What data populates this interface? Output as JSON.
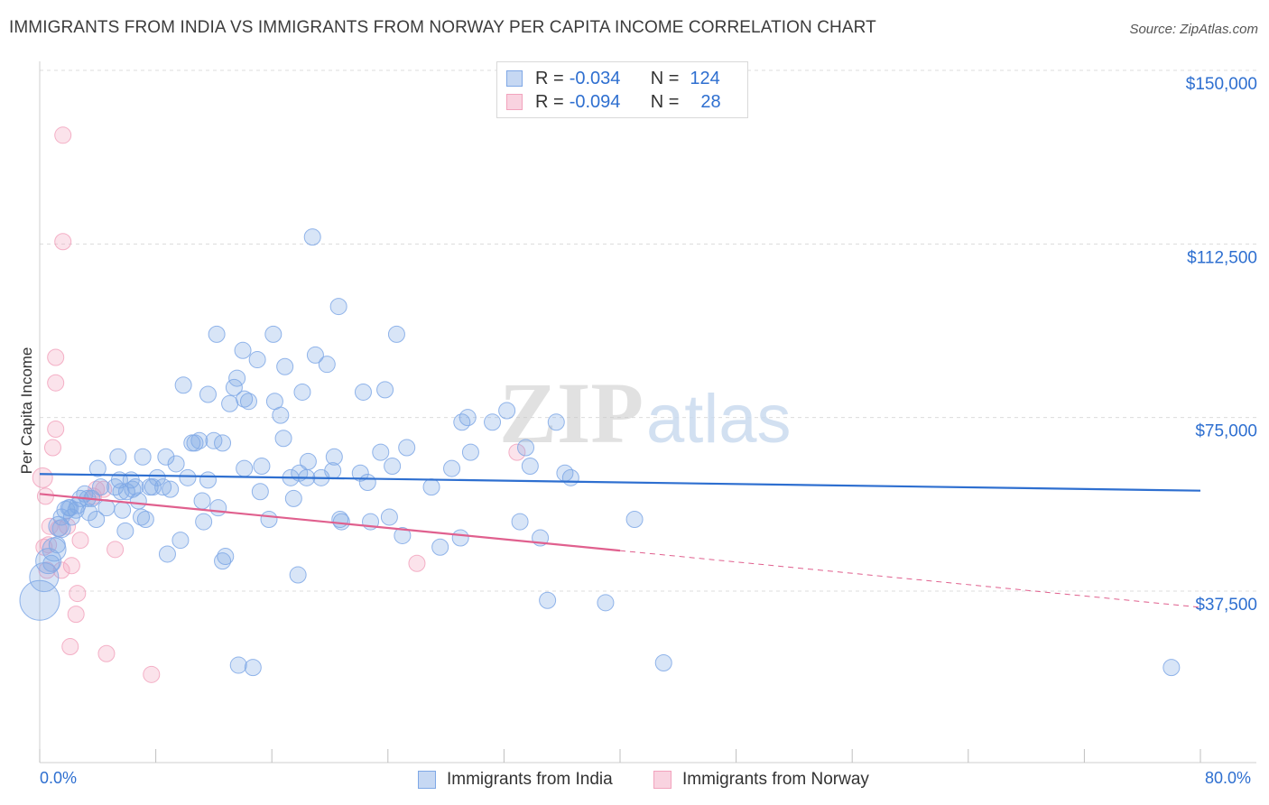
{
  "title": "IMMIGRANTS FROM INDIA VS IMMIGRANTS FROM NORWAY PER CAPITA INCOME CORRELATION CHART",
  "source": "Source: ZipAtlas.com",
  "colors": {
    "india": "#7fa8e6",
    "india_line": "#2e6fd0",
    "norway": "#f2a3bd",
    "norway_line": "#e0608e",
    "axis_text": "#2e6fd0"
  },
  "legend": {
    "india": {
      "r_label": "R =",
      "r_value": "-0.034",
      "n_label": "N =",
      "n_value": "124"
    },
    "norway": {
      "r_label": "R =",
      "r_value": "-0.094",
      "n_label": "N =",
      "n_value": "28"
    }
  },
  "watermark": {
    "zip": "ZIP",
    "atlas": "atlas"
  },
  "chart_data": {
    "type": "scatter",
    "title": "IMMIGRANTS FROM INDIA VS IMMIGRANTS FROM NORWAY PER CAPITA INCOME CORRELATION CHART",
    "xlabel": "",
    "ylabel": "Per Capita Income",
    "xlim": [
      0,
      80
    ],
    "ylim": [
      0,
      155000
    ],
    "x_tick_labels": [
      "0.0%",
      "80.0%"
    ],
    "y_ticks": [
      37500,
      75000,
      112500,
      150000
    ],
    "y_tick_labels": [
      "$37,500",
      "$75,000",
      "$112,500",
      "$150,000"
    ],
    "series": [
      {
        "name": "Immigrants from India",
        "r": -0.034,
        "n": 124,
        "trend": {
          "x": [
            0,
            80
          ],
          "y": [
            62800,
            59200
          ],
          "dashed_from": null
        },
        "points": [
          [
            0.0,
            35500,
            22
          ],
          [
            0.3,
            40500,
            16
          ],
          [
            0.6,
            44000,
            14
          ],
          [
            1.0,
            46500,
            13
          ],
          [
            1.3,
            51500,
            11
          ],
          [
            1.5,
            51000,
            10
          ],
          [
            1.8,
            55000,
            10
          ],
          [
            2.0,
            55500,
            9
          ],
          [
            2.2,
            53500,
            9
          ],
          [
            2.5,
            55000,
            9
          ],
          [
            2.8,
            57500,
            9
          ],
          [
            3.1,
            58500,
            9
          ],
          [
            3.4,
            54500,
            9
          ],
          [
            3.6,
            57500,
            9
          ],
          [
            3.9,
            53000,
            9
          ],
          [
            4.2,
            60000,
            9
          ],
          [
            4.6,
            55500,
            9
          ],
          [
            4.0,
            64000,
            9
          ],
          [
            5.2,
            60000,
            9
          ],
          [
            5.5,
            61500,
            9
          ],
          [
            6.0,
            59000,
            9
          ],
          [
            6.4,
            59500,
            9
          ],
          [
            6.8,
            57000,
            9
          ],
          [
            5.7,
            55000,
            9
          ],
          [
            5.9,
            50500,
            9
          ],
          [
            7.0,
            53500,
            9
          ],
          [
            7.6,
            60000,
            9
          ],
          [
            8.1,
            62000,
            9
          ],
          [
            8.5,
            60000,
            9
          ],
          [
            9.0,
            59500,
            9
          ],
          [
            8.8,
            45500,
            9
          ],
          [
            9.7,
            48500,
            9
          ],
          [
            10.2,
            62000,
            9
          ],
          [
            9.4,
            65000,
            9
          ],
          [
            11.0,
            70000,
            9
          ],
          [
            10.7,
            69500,
            9
          ],
          [
            11.3,
            52500,
            9
          ],
          [
            11.2,
            57000,
            9
          ],
          [
            12.3,
            55500,
            9
          ],
          [
            12.6,
            44000,
            9
          ],
          [
            12.8,
            45000,
            9
          ],
          [
            13.1,
            78000,
            9
          ],
          [
            13.4,
            81500,
            9
          ],
          [
            13.6,
            83500,
            9
          ],
          [
            14.0,
            89500,
            9
          ],
          [
            14.4,
            78500,
            9
          ],
          [
            15.0,
            87500,
            9
          ],
          [
            15.3,
            64500,
            9
          ],
          [
            15.2,
            59000,
            9
          ],
          [
            15.8,
            53000,
            9
          ],
          [
            16.2,
            78500,
            9
          ],
          [
            16.6,
            75500,
            9
          ],
          [
            16.8,
            70500,
            9
          ],
          [
            16.9,
            86000,
            9
          ],
          [
            17.3,
            62000,
            9
          ],
          [
            17.5,
            57500,
            9
          ],
          [
            17.9,
            63000,
            9
          ],
          [
            18.1,
            80500,
            9
          ],
          [
            18.4,
            62000,
            9
          ],
          [
            18.5,
            65500,
            9
          ],
          [
            19.0,
            88500,
            9
          ],
          [
            19.4,
            62000,
            9
          ],
          [
            19.8,
            86500,
            9
          ],
          [
            20.3,
            66500,
            9
          ],
          [
            20.2,
            63500,
            9
          ],
          [
            20.8,
            52500,
            9
          ],
          [
            18.8,
            114000,
            9
          ],
          [
            20.6,
            99000,
            9
          ],
          [
            22.1,
            63000,
            9
          ],
          [
            22.3,
            80500,
            9
          ],
          [
            22.8,
            52500,
            9
          ],
          [
            23.5,
            67500,
            9
          ],
          [
            23.8,
            81000,
            9
          ],
          [
            24.1,
            53500,
            9
          ],
          [
            24.3,
            64500,
            9
          ],
          [
            24.6,
            93000,
            9
          ],
          [
            25.0,
            49500,
            9
          ],
          [
            25.3,
            68500,
            9
          ],
          [
            27.0,
            60000,
            9
          ],
          [
            27.6,
            47000,
            9
          ],
          [
            28.4,
            64000,
            9
          ],
          [
            29.1,
            74000,
            9
          ],
          [
            29.5,
            75000,
            9
          ],
          [
            29.0,
            49000,
            9
          ],
          [
            29.7,
            67500,
            9
          ],
          [
            31.2,
            74000,
            9
          ],
          [
            32.2,
            76500,
            9
          ],
          [
            33.1,
            52500,
            9
          ],
          [
            33.5,
            68500,
            9
          ],
          [
            33.8,
            64500,
            9
          ],
          [
            34.5,
            49000,
            9
          ],
          [
            35.6,
            74000,
            9
          ],
          [
            36.2,
            63000,
            9
          ],
          [
            36.6,
            62000,
            9
          ],
          [
            35.0,
            35500,
            9
          ],
          [
            39.0,
            35000,
            9
          ],
          [
            41.0,
            53000,
            9
          ],
          [
            43.0,
            22000,
            9
          ],
          [
            78.0,
            21000,
            9
          ],
          [
            14.7,
            21000,
            9
          ],
          [
            16.1,
            93000,
            9
          ],
          [
            14.1,
            64000,
            9
          ],
          [
            12.6,
            69500,
            9
          ],
          [
            11.6,
            61500,
            9
          ],
          [
            10.5,
            69500,
            9
          ],
          [
            8.7,
            66500,
            9
          ],
          [
            7.1,
            66500,
            9
          ],
          [
            6.3,
            61500,
            9
          ],
          [
            5.6,
            59000,
            9
          ],
          [
            5.4,
            66500,
            9
          ],
          [
            9.9,
            82000,
            9
          ],
          [
            11.6,
            80000,
            9
          ],
          [
            12.0,
            70000,
            9
          ],
          [
            12.2,
            93000,
            9
          ],
          [
            14.1,
            79000,
            9
          ],
          [
            3.3,
            57500,
            9
          ],
          [
            2.6,
            56000,
            9
          ],
          [
            2.1,
            55500,
            9
          ],
          [
            1.5,
            53500,
            9
          ],
          [
            1.2,
            47500,
            9
          ],
          [
            0.8,
            43500,
            9
          ],
          [
            7.8,
            60000,
            9
          ],
          [
            7.3,
            53000,
            9
          ],
          [
            6.6,
            60000,
            9
          ],
          [
            17.8,
            41000,
            9
          ],
          [
            13.7,
            21500,
            9
          ],
          [
            20.7,
            53000,
            9
          ],
          [
            22.6,
            61000,
            9
          ]
        ]
      },
      {
        "name": "Immigrants from Norway",
        "r": -0.094,
        "n": 28,
        "trend": {
          "x": [
            0,
            80
          ],
          "y": [
            58500,
            34000
          ],
          "dashed_from": 40
        },
        "points": [
          [
            0.2,
            62000,
            11
          ],
          [
            0.4,
            58000,
            9
          ],
          [
            0.3,
            47000,
            9
          ],
          [
            1.6,
            136000,
            9
          ],
          [
            1.6,
            113000,
            9
          ],
          [
            1.1,
            88000,
            9
          ],
          [
            1.1,
            82500,
            9
          ],
          [
            1.1,
            72500,
            9
          ],
          [
            0.9,
            68500,
            9
          ],
          [
            0.7,
            51500,
            9
          ],
          [
            1.3,
            51000,
            9
          ],
          [
            1.9,
            51500,
            9
          ],
          [
            2.2,
            43000,
            9
          ],
          [
            1.5,
            42000,
            9
          ],
          [
            2.1,
            25500,
            9
          ],
          [
            2.6,
            37000,
            9
          ],
          [
            2.5,
            32500,
            9
          ],
          [
            2.8,
            48500,
            9
          ],
          [
            3.7,
            58000,
            9
          ],
          [
            3.9,
            59500,
            9
          ],
          [
            4.4,
            59500,
            9
          ],
          [
            5.2,
            46500,
            9
          ],
          [
            4.6,
            24000,
            9
          ],
          [
            7.7,
            19500,
            9
          ],
          [
            26.0,
            43500,
            9
          ],
          [
            32.9,
            67500,
            9
          ],
          [
            0.5,
            42000,
            9
          ],
          [
            0.6,
            47500,
            9
          ]
        ]
      }
    ]
  },
  "x_axis": {
    "left_label": "0.0%",
    "right_label": "80.0%"
  },
  "bottom_legend": {
    "india": "Immigrants from India",
    "norway": "Immigrants from Norway"
  }
}
